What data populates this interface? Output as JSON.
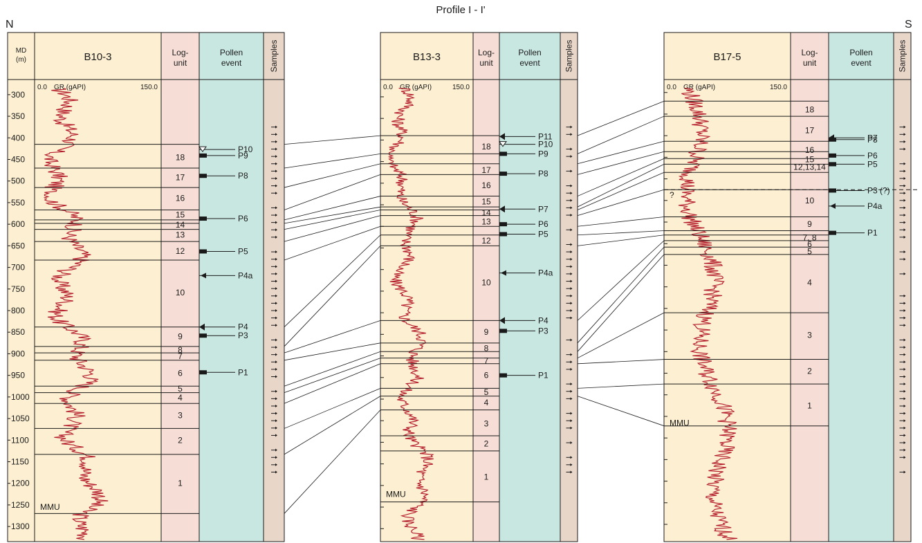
{
  "title": "Profile I - I'",
  "direction_left": "N",
  "direction_right": "S",
  "header": {
    "md_label": "MD",
    "md_unit": "(m)",
    "logunit_line1": "Log-",
    "logunit_line2": "unit",
    "pollen_line1": "Pollen",
    "pollen_line2": "event",
    "samples": "Samples"
  },
  "gr_track": {
    "label": "GR (gAPI)",
    "min_label": "0.0",
    "max_label": "150.0"
  },
  "mmu_label": "MMU",
  "depth_ticks": [
    300,
    350,
    400,
    450,
    500,
    550,
    600,
    650,
    700,
    750,
    800,
    850,
    900,
    950,
    1000,
    1050,
    1100,
    1150,
    1200,
    1250,
    1300
  ],
  "colors": {
    "gr_fill": "#fdf0d2",
    "unit_fill": "#f6ddd6",
    "pollen_fill": "#c9e7e1",
    "samples_fill": "#e8d6c9",
    "gr_curve": "#b5202e",
    "line": "#1a1a1a"
  },
  "wells": [
    {
      "name": "B10-3",
      "depth_start": 265,
      "depth_end": 1335,
      "mmu_depth": 1255,
      "boundaries": [
        415,
        470,
        515,
        567,
        590,
        598,
        612,
        640,
        683,
        838,
        883,
        898,
        915,
        975,
        990,
        1015,
        1073,
        1133,
        1270
      ],
      "units": [
        {
          "label": "18",
          "depth": 445
        },
        {
          "label": "17",
          "depth": 492
        },
        {
          "label": "16",
          "depth": 540
        },
        {
          "label": "15",
          "depth": 578
        },
        {
          "label": "14",
          "depth": 601
        },
        {
          "label": "13",
          "depth": 625
        },
        {
          "label": "12",
          "depth": 662
        },
        {
          "label": "10",
          "depth": 758
        },
        {
          "label": "9",
          "depth": 860
        },
        {
          "label": "8",
          "depth": 891
        },
        {
          "label": "7",
          "depth": 906
        },
        {
          "label": "6",
          "depth": 945
        },
        {
          "label": "5",
          "depth": 981
        },
        {
          "label": "4",
          "depth": 1002
        },
        {
          "label": "3",
          "depth": 1043
        },
        {
          "label": "2",
          "depth": 1100
        },
        {
          "label": "1",
          "depth": 1200
        }
      ],
      "pollen": [
        {
          "label": "P10",
          "depth": 427,
          "marker": "open-triangle"
        },
        {
          "label": "P9",
          "depth": 441,
          "marker": "rect"
        },
        {
          "label": "P8",
          "depth": 488,
          "marker": "rect"
        },
        {
          "label": "P6",
          "depth": 587,
          "marker": "rect"
        },
        {
          "label": "P5",
          "depth": 663,
          "marker": "rect"
        },
        {
          "label": "P4a",
          "depth": 719,
          "marker": "arrow"
        },
        {
          "label": "P4",
          "depth": 838,
          "marker": "filled-triangle"
        },
        {
          "label": "P3",
          "depth": 858,
          "marker": "rect"
        },
        {
          "label": "P1",
          "depth": 943,
          "marker": "rect"
        }
      ]
    },
    {
      "name": "B13-3",
      "depth_start": 260,
      "depth_end": 1330,
      "mmu_depth": 1220,
      "boundaries": [
        390,
        432,
        455,
        480,
        530,
        555,
        562,
        575,
        600,
        620,
        645,
        818,
        870,
        890,
        905,
        918,
        975,
        993,
        1025,
        1085,
        1120,
        1238
      ],
      "units": [
        {
          "label": "18",
          "depth": 415
        },
        {
          "label": "17",
          "depth": 470
        },
        {
          "label": "16",
          "depth": 505
        },
        {
          "label": "15",
          "depth": 543
        },
        {
          "label": "14",
          "depth": 568
        },
        {
          "label": "13",
          "depth": 589
        },
        {
          "label": "12",
          "depth": 633
        },
        {
          "label": "10",
          "depth": 730
        },
        {
          "label": "9",
          "depth": 845
        },
        {
          "label": "8",
          "depth": 882
        },
        {
          "label": "7",
          "depth": 911
        },
        {
          "label": "6",
          "depth": 945
        },
        {
          "label": "5",
          "depth": 984
        },
        {
          "label": "4",
          "depth": 1008
        },
        {
          "label": "3",
          "depth": 1057
        },
        {
          "label": "2",
          "depth": 1103
        },
        {
          "label": "1",
          "depth": 1180
        }
      ],
      "pollen": [
        {
          "label": "P11",
          "depth": 392,
          "marker": "filled-triangle"
        },
        {
          "label": "P10",
          "depth": 410,
          "marker": "open-triangle"
        },
        {
          "label": "P9",
          "depth": 432,
          "marker": "rect"
        },
        {
          "label": "P8",
          "depth": 478,
          "marker": "rect"
        },
        {
          "label": "P7",
          "depth": 560,
          "marker": "filled-triangle"
        },
        {
          "label": "P6",
          "depth": 595,
          "marker": "rect"
        },
        {
          "label": "P5",
          "depth": 618,
          "marker": "rect"
        },
        {
          "label": "P4a",
          "depth": 708,
          "marker": "arrow"
        },
        {
          "label": "P4",
          "depth": 818,
          "marker": "filled-triangle"
        },
        {
          "label": "P3",
          "depth": 842,
          "marker": "rect"
        },
        {
          "label": "P1",
          "depth": 945,
          "marker": "rect"
        }
      ]
    },
    {
      "name": "B17-5",
      "depth_start": 270,
      "depth_end": 1340,
      "mmu_depth": 1065,
      "boundaries": [
        320,
        355,
        413,
        437,
        453,
        466,
        485,
        525,
        588,
        620,
        630,
        643,
        658,
        675,
        810,
        918,
        975,
        1072
      ],
      "units": [
        {
          "label": "18",
          "depth": 340
        },
        {
          "label": "17",
          "depth": 388
        },
        {
          "label": "16",
          "depth": 433
        },
        {
          "label": "15",
          "depth": 455
        },
        {
          "label": "12,13,14",
          "depth": 473
        },
        {
          "label": "10",
          "depth": 550
        },
        {
          "label": "9",
          "depth": 605
        },
        {
          "label": "7, 8",
          "depth": 636
        },
        {
          "label": "6",
          "depth": 651
        },
        {
          "label": "5",
          "depth": 668
        },
        {
          "label": "4",
          "depth": 740
        },
        {
          "label": "3",
          "depth": 862
        },
        {
          "label": "2",
          "depth": 945
        },
        {
          "label": "1",
          "depth": 1025
        }
      ],
      "dashed_depth": 525,
      "question_mark": "?",
      "pollen": [
        {
          "label": "P7",
          "depth": 405,
          "marker": "filled-triangle"
        },
        {
          "label": "P8",
          "depth": 409,
          "marker": "rect"
        },
        {
          "label": "P6",
          "depth": 446,
          "marker": "rect"
        },
        {
          "label": "P5",
          "depth": 466,
          "marker": "rect"
        },
        {
          "label": "P3 (?)",
          "depth": 527,
          "marker": "rect"
        },
        {
          "label": "P4a",
          "depth": 563,
          "marker": "arrow"
        },
        {
          "label": "P1",
          "depth": 625,
          "marker": "rect"
        }
      ]
    }
  ]
}
